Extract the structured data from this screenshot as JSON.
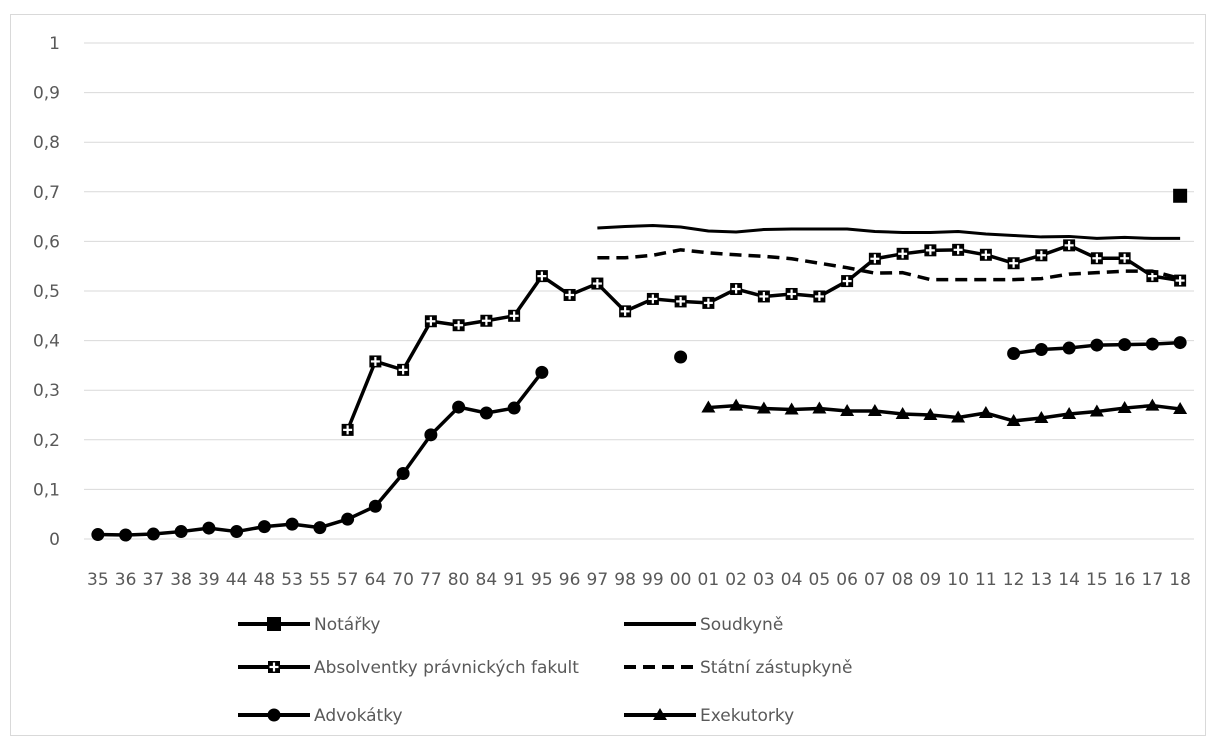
{
  "chart_data": {
    "type": "line",
    "categories": [
      "35",
      "36",
      "37",
      "38",
      "39",
      "44",
      "48",
      "53",
      "55",
      "57",
      "64",
      "70",
      "77",
      "80",
      "84",
      "91",
      "95",
      "96",
      "97",
      "98",
      "99",
      "00",
      "01",
      "02",
      "03",
      "04",
      "05",
      "06",
      "07",
      "08",
      "09",
      "10",
      "11",
      "12",
      "13",
      "14",
      "15",
      "16",
      "17",
      "18"
    ],
    "ylim": [
      0,
      1
    ],
    "yticks": [
      "0",
      "0,1",
      "0,2",
      "0,3",
      "0,4",
      "0,5",
      "0,6",
      "0,7",
      "0,8",
      "0,9",
      "1"
    ],
    "grid": true,
    "legend_position": "bottom",
    "series": [
      {
        "name": "Notářky",
        "style": "square",
        "values": [
          null,
          null,
          null,
          null,
          null,
          null,
          null,
          null,
          null,
          null,
          null,
          null,
          null,
          null,
          null,
          null,
          null,
          null,
          null,
          null,
          null,
          null,
          null,
          null,
          null,
          null,
          null,
          null,
          null,
          null,
          null,
          null,
          null,
          null,
          null,
          null,
          null,
          null,
          null,
          0.692
        ]
      },
      {
        "name": "Soudkyně",
        "style": "solid",
        "values": [
          null,
          null,
          null,
          null,
          null,
          null,
          null,
          null,
          null,
          null,
          null,
          null,
          null,
          null,
          null,
          null,
          null,
          null,
          0.627,
          0.63,
          0.632,
          0.629,
          0.621,
          0.619,
          0.624,
          0.625,
          0.625,
          0.625,
          0.62,
          0.618,
          0.618,
          0.62,
          0.615,
          0.612,
          0.609,
          0.61,
          0.606,
          0.608,
          0.606,
          0.606
        ]
      },
      {
        "name": "Absolventky právnických fakult",
        "style": "cross",
        "values": [
          null,
          null,
          null,
          null,
          null,
          null,
          null,
          null,
          null,
          0.22,
          0.358,
          0.341,
          0.439,
          0.431,
          0.44,
          0.45,
          0.53,
          0.492,
          0.515,
          0.459,
          0.484,
          0.479,
          0.476,
          0.504,
          0.489,
          0.494,
          0.489,
          0.52,
          0.565,
          0.575,
          0.582,
          0.583,
          0.573,
          0.556,
          0.572,
          0.592,
          0.566,
          0.566,
          0.53,
          0.521
        ]
      },
      {
        "name": "Státní zástupkyně",
        "style": "dashed",
        "values": [
          null,
          null,
          null,
          null,
          null,
          null,
          null,
          null,
          null,
          null,
          null,
          null,
          null,
          null,
          null,
          null,
          null,
          null,
          0.567,
          0.567,
          0.572,
          0.583,
          0.577,
          0.573,
          0.57,
          0.565,
          0.556,
          0.547,
          0.536,
          0.537,
          0.523,
          0.523,
          0.523,
          0.523,
          0.525,
          0.534,
          0.537,
          0.54,
          0.54,
          0.525
        ]
      },
      {
        "name": "Advokátky",
        "style": "circle",
        "values": [
          0.009,
          0.008,
          0.01,
          0.015,
          0.022,
          0.015,
          0.025,
          0.03,
          0.023,
          0.04,
          0.066,
          0.132,
          0.21,
          0.266,
          0.254,
          0.264,
          0.336,
          null,
          null,
          null,
          null,
          0.367,
          null,
          null,
          null,
          null,
          null,
          null,
          null,
          null,
          null,
          null,
          null,
          0.374,
          0.382,
          0.385,
          0.391,
          0.392,
          0.393,
          0.396
        ]
      },
      {
        "name": "Exekutorky",
        "style": "triangle",
        "values": [
          null,
          null,
          null,
          null,
          null,
          null,
          null,
          null,
          null,
          null,
          null,
          null,
          null,
          null,
          null,
          null,
          null,
          null,
          null,
          null,
          null,
          null,
          0.265,
          0.269,
          0.263,
          0.261,
          0.263,
          0.258,
          0.258,
          0.252,
          0.25,
          0.245,
          0.254,
          0.238,
          0.244,
          0.252,
          0.257,
          0.264,
          0.269,
          0.262
        ]
      }
    ]
  },
  "colors": {
    "line": "#000000",
    "grid": "#d9d9d9",
    "text": "#595959"
  }
}
